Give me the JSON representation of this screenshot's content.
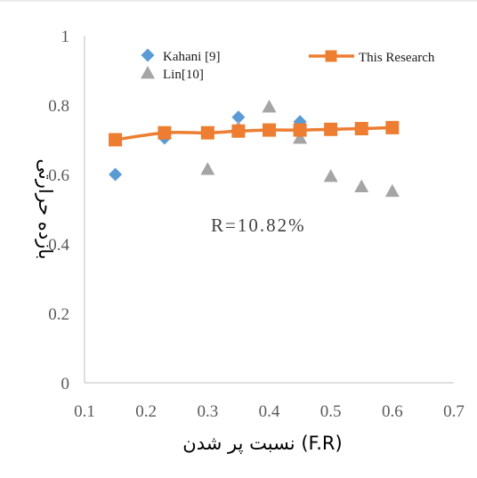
{
  "chart_data": {
    "type": "scatter",
    "xlabel": "نسبت پر شدن (F.R)",
    "ylabel": "بازده حرارتی",
    "xlim": [
      0.1,
      0.7
    ],
    "ylim": [
      0,
      1
    ],
    "x_ticks": [
      "0.1",
      "0.2",
      "0.3",
      "0.4",
      "0.5",
      "0.6",
      "0.7"
    ],
    "y_ticks": [
      "0",
      "0.2",
      "0.4",
      "0.6",
      "0.8",
      "1"
    ],
    "grid": false,
    "legend_position": "top",
    "annotation": "R=10.82%",
    "series": [
      {
        "name": "Kahani [9]",
        "marker": "diamond",
        "color": "#5b9bd5",
        "x": [
          0.15,
          0.23,
          0.35,
          0.45
        ],
        "y": [
          0.6,
          0.705,
          0.765,
          0.752
        ]
      },
      {
        "name": "Lin[10]",
        "marker": "triangle",
        "color": "#a5a5a5",
        "x": [
          0.3,
          0.35,
          0.4,
          0.45,
          0.5,
          0.55,
          0.6
        ],
        "y": [
          0.615,
          0.735,
          0.795,
          0.705,
          0.595,
          0.565,
          0.552
        ]
      },
      {
        "name": "This Research",
        "marker": "square-line",
        "color": "#ed7d31",
        "x": [
          0.15,
          0.23,
          0.3,
          0.35,
          0.4,
          0.45,
          0.5,
          0.55,
          0.6
        ],
        "y": [
          0.7,
          0.72,
          0.72,
          0.725,
          0.728,
          0.728,
          0.73,
          0.732,
          0.735
        ]
      }
    ]
  }
}
